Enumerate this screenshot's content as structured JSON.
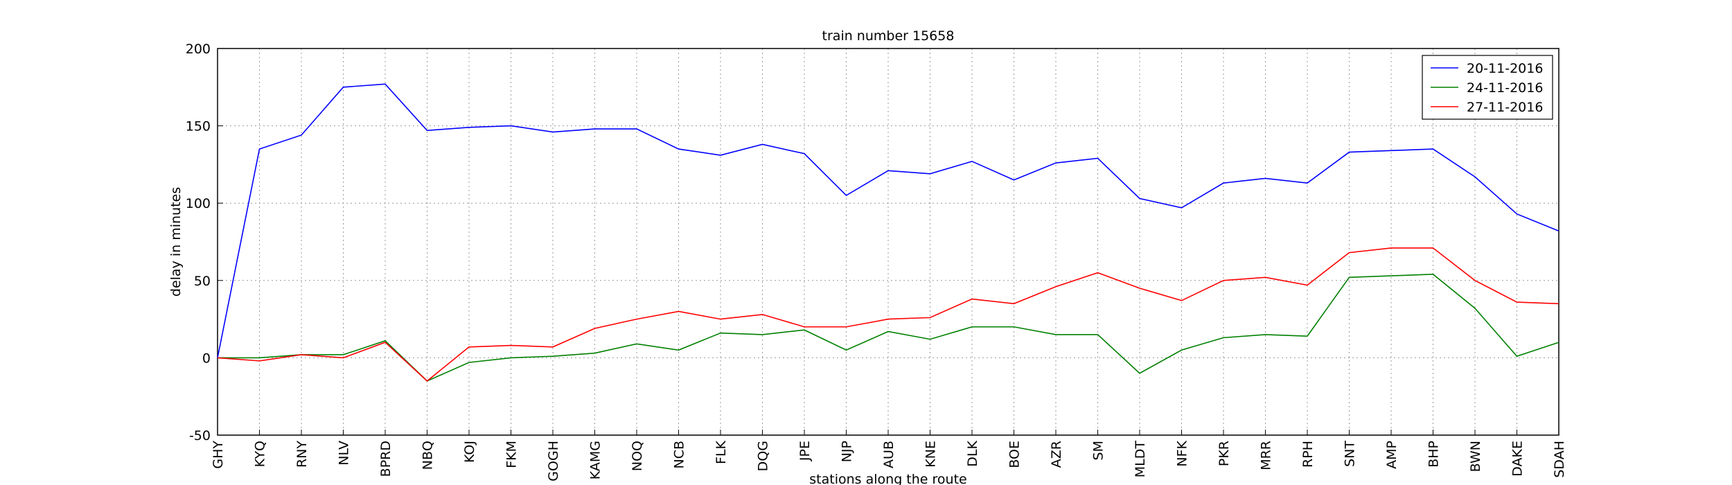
{
  "chart_data": {
    "type": "line",
    "title": "train number 15658",
    "x_label": "stations along the route",
    "y_label": "delay in minutes",
    "categories": [
      "GHY",
      "KYQ",
      "RNY",
      "NLV",
      "BPRD",
      "NBQ",
      "KOJ",
      "FKM",
      "GOGH",
      "KAMG",
      "NOQ",
      "NCB",
      "FLK",
      "DQG",
      "JPE",
      "NJP",
      "AUB",
      "KNE",
      "DLK",
      "BOE",
      "AZR",
      "SM",
      "MLDT",
      "NFK",
      "PKR",
      "MRR",
      "RPH",
      "SNT",
      "AMP",
      "BHP",
      "BWN",
      "DAKE",
      "SDAH"
    ],
    "series": [
      {
        "name": "20-11-2016",
        "color": "#0000ff",
        "values": [
          0,
          135,
          144,
          175,
          177,
          147,
          149,
          150,
          146,
          148,
          148,
          135,
          131,
          138,
          132,
          105,
          121,
          119,
          127,
          115,
          126,
          129,
          103,
          97,
          113,
          116,
          113,
          133,
          134,
          135,
          117,
          93,
          82
        ]
      },
      {
        "name": "24-11-2016",
        "color": "#008000",
        "values": [
          0,
          0,
          2,
          2,
          11,
          -15,
          -3,
          0,
          1,
          3,
          9,
          5,
          16,
          15,
          18,
          5,
          17,
          12,
          20,
          20,
          15,
          15,
          -10,
          5,
          13,
          15,
          14,
          52,
          53,
          54,
          32,
          1,
          10
        ]
      },
      {
        "name": "27-11-2016",
        "color": "#ff0000",
        "values": [
          0,
          -2,
          2,
          0,
          10,
          -15,
          7,
          8,
          7,
          19,
          25,
          30,
          25,
          28,
          20,
          20,
          25,
          26,
          38,
          35,
          46,
          55,
          45,
          37,
          50,
          52,
          47,
          68,
          71,
          71,
          50,
          36,
          35
        ]
      }
    ],
    "ylim": [
      -50,
      200
    ],
    "yticks": [
      -50,
      0,
      50,
      100,
      150,
      200
    ],
    "grid": true,
    "legend": "upper right"
  }
}
